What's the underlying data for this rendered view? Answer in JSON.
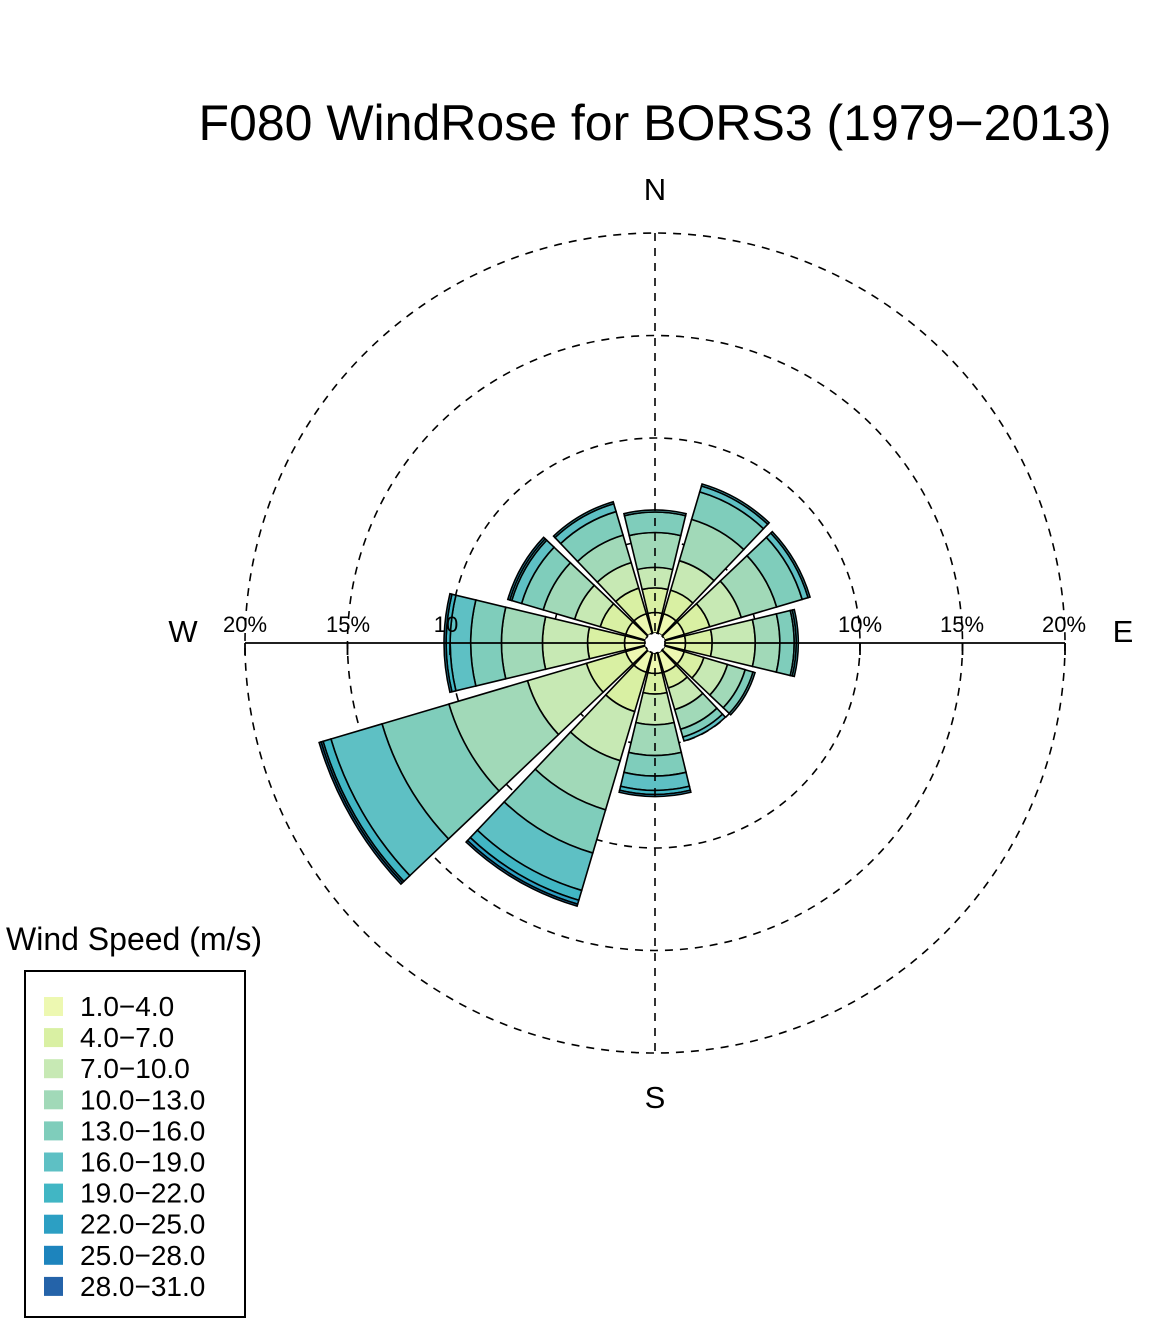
{
  "chart_data": {
    "type": "windrose",
    "title": "F080 WindRose for BORS3 (1979−2013)",
    "compass_labels": [
      "N",
      "E",
      "S",
      "W"
    ],
    "radial_unit": "%",
    "radial_max": 20,
    "radial_rings": [
      10,
      15,
      20
    ],
    "ring_labels": [
      "10%",
      "15%",
      "20%"
    ],
    "ring_labels_west": [
      "20%",
      "15%",
      "10"
    ],
    "grid": "dashed circles and N-S dashed axis",
    "legend": {
      "title": "Wind Speed (m/s)",
      "position": "bottom-left",
      "bins": [
        "1.0−4.0",
        "4.0−7.0",
        "7.0−10.0",
        "10.0−13.0",
        "13.0−16.0",
        "16.0−19.0",
        "19.0−22.0",
        "22.0−25.0",
        "25.0−28.0",
        "28.0−31.0"
      ],
      "colors": [
        "#edf8b1",
        "#d9f0a3",
        "#c7e9b4",
        "#a1d9b8",
        "#7fcdbb",
        "#5ec0c4",
        "#41b6c4",
        "#2c9fc3",
        "#1d84bd",
        "#2463a9"
      ]
    },
    "directions_deg": [
      0,
      30,
      60,
      90,
      120,
      150,
      180,
      210,
      240,
      270,
      300,
      330
    ],
    "cumulative_percent": [
      [
        1.0,
        2.2,
        3.2,
        4.9,
        5.9,
        6.0,
        6.0,
        6.0,
        6.0,
        6.0
      ],
      [
        1.0,
        2.2,
        3.7,
        5.8,
        7.2,
        7.5,
        7.6,
        7.6,
        7.6,
        7.6
      ],
      [
        1.0,
        2.3,
        3.9,
        5.7,
        7.0,
        7.3,
        7.4,
        7.4,
        7.4,
        7.4
      ],
      [
        1.0,
        2.3,
        4.4,
        5.6,
        6.3,
        6.4,
        6.5,
        6.5,
        6.5,
        6.5
      ],
      [
        1.0,
        2.0,
        3.2,
        4.1,
        4.5,
        4.6,
        4.6,
        4.6,
        4.6,
        4.6
      ],
      [
        1.0,
        1.8,
        2.9,
        3.9,
        4.3,
        4.5,
        4.5,
        4.5,
        4.5,
        4.5
      ],
      [
        1.0,
        2.0,
        3.5,
        5.0,
        6.0,
        6.7,
        6.9,
        7.0,
        7.0,
        7.0
      ],
      [
        1.0,
        3.0,
        5.5,
        8.0,
        10.2,
        12.1,
        12.6,
        12.8,
        12.9,
        12.9
      ],
      [
        1.0,
        3.0,
        6.0,
        10.0,
        13.4,
        16.0,
        16.4,
        16.5,
        16.6,
        16.6
      ],
      [
        1.0,
        2.8,
        5.0,
        7.0,
        8.5,
        9.5,
        9.7,
        9.8,
        9.8,
        9.8
      ],
      [
        1.0,
        2.3,
        3.6,
        5.2,
        6.3,
        6.8,
        6.9,
        7.0,
        7.0,
        7.0
      ],
      [
        1.0,
        2.3,
        3.6,
        5.0,
        6.2,
        6.6,
        6.7,
        6.7,
        6.7,
        6.7
      ]
    ]
  }
}
